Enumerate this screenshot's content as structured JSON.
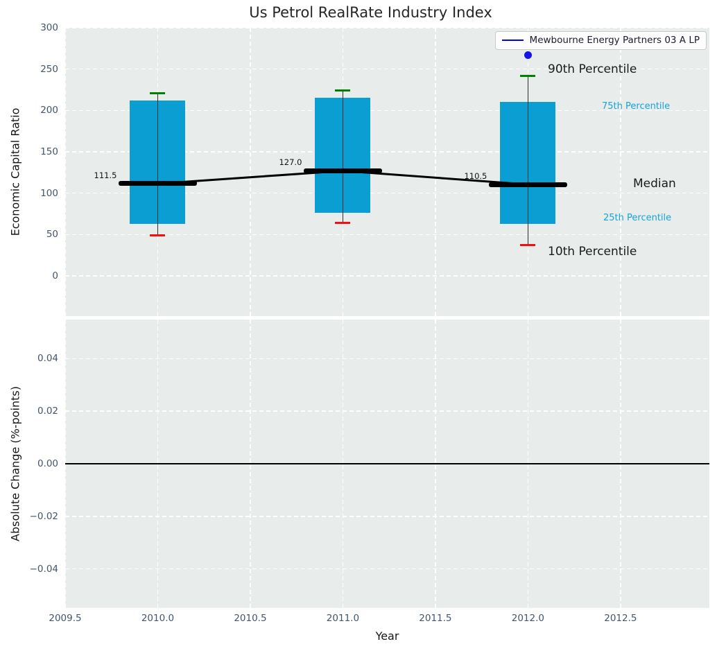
{
  "legend": {
    "label": "Mewbourne Energy Partners 03 A LP",
    "line_color": "#0000ee"
  },
  "chart_data": [
    {
      "type": "boxplot",
      "title": "Us Petrol RealRate Industry Index",
      "xlabel": "Year",
      "ylabel": "Economic Capital Ratio",
      "categories": [
        2010,
        2011,
        2012
      ],
      "series": [
        {
          "name": "90th Percentile",
          "values": [
            221,
            224,
            242
          ]
        },
        {
          "name": "75th Percentile",
          "values": [
            212,
            215,
            210
          ]
        },
        {
          "name": "Median",
          "values": [
            111.5,
            127.0,
            110.5
          ]
        },
        {
          "name": "25th Percentile",
          "values": [
            63,
            76,
            63
          ]
        },
        {
          "name": "10th Percentile",
          "values": [
            49,
            64,
            37
          ]
        }
      ],
      "median_labels": [
        "111.5",
        "127.0",
        "110.5"
      ],
      "company_point": {
        "label": "Mewbourne Energy Partners 03 A LP",
        "x": 2012,
        "y": 267
      },
      "annotations": [
        {
          "id": "p90",
          "text": "90th Percentile",
          "size": "large"
        },
        {
          "id": "p75",
          "text": "75th Percentile",
          "size": "small"
        },
        {
          "id": "median",
          "text": "Median",
          "size": "large"
        },
        {
          "id": "p25",
          "text": "25th Percentile",
          "size": "small"
        },
        {
          "id": "p10",
          "text": "10th Percentile",
          "size": "large"
        }
      ],
      "xlim": [
        2009.5,
        2012.98
      ],
      "ylim": [
        -48.6,
        300
      ],
      "xticks": [
        2009.5,
        2010.0,
        2010.5,
        2011.0,
        2011.5,
        2012.0,
        2012.5
      ],
      "yticks": [
        {
          "v": 0,
          "label": "0"
        },
        {
          "v": 50,
          "label": "50"
        },
        {
          "v": 100,
          "label": "100"
        },
        {
          "v": 150,
          "label": "150"
        },
        {
          "v": 200,
          "label": "200"
        },
        {
          "v": 250,
          "label": "250"
        },
        {
          "v": 300,
          "label": "300"
        }
      ],
      "colors": {
        "box": "#0a9ed3",
        "cap_top": "#008000",
        "cap_bottom": "#ee1111",
        "median_line": "#000000",
        "company_point": "#1414e8",
        "annotation_small": "#14a3dc",
        "plot_background": "#e8edec"
      },
      "grid": true,
      "legend_position": "upper right"
    },
    {
      "type": "line",
      "xlabel": "Year",
      "ylabel": "Absolute Change (%-points)",
      "series": [],
      "xlim": [
        2009.5,
        2012.98
      ],
      "ylim": [
        -0.0549,
        0.0549
      ],
      "xticks": [
        {
          "v": 2009.5,
          "label": "2009.5"
        },
        {
          "v": 2010.0,
          "label": "2010.0"
        },
        {
          "v": 2010.5,
          "label": "2010.5"
        },
        {
          "v": 2011.0,
          "label": "2011.0"
        },
        {
          "v": 2011.5,
          "label": "2011.5"
        },
        {
          "v": 2012.0,
          "label": "2012.0"
        },
        {
          "v": 2012.5,
          "label": "2012.5"
        }
      ],
      "yticks": [
        {
          "v": 0.04,
          "label": "0.04"
        },
        {
          "v": 0.02,
          "label": "0.02"
        },
        {
          "v": 0.0,
          "label": "0.00"
        },
        {
          "v": -0.02,
          "label": "−0.02"
        },
        {
          "v": -0.04,
          "label": "−0.04"
        }
      ],
      "zero_line": {
        "y": 0.0,
        "color": "#000000"
      },
      "grid": true
    }
  ]
}
